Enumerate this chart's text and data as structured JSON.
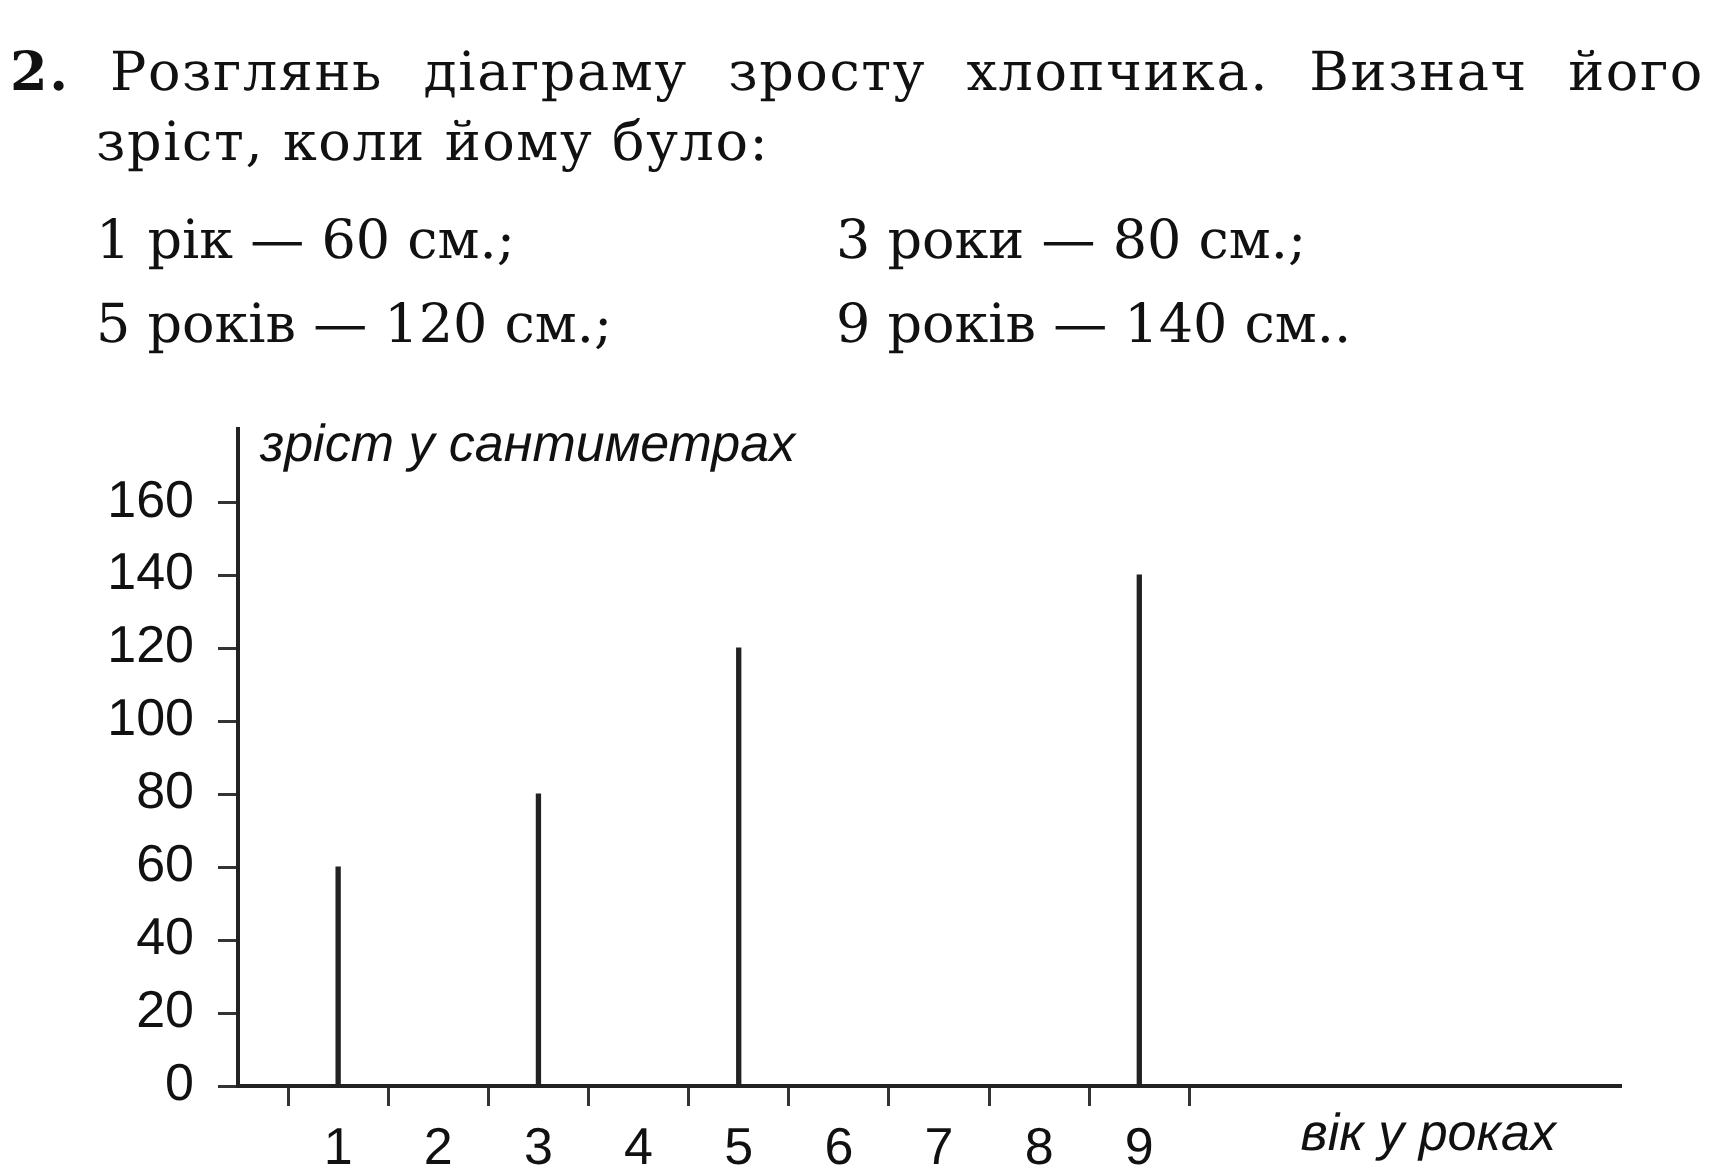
{
  "chart_data": {
    "type": "bar",
    "title": "2. Розглянь діаграму зросту хлопчика. Визнач його зріст, коли йому було:",
    "annotations": [
      "1 рік — 60 см.;",
      "3 роки — 80 см.;",
      "5 років — 120 см.;",
      "9 років — 140 см.."
    ],
    "xlabel": "вік у роках",
    "ylabel": "зріст у сантиметрах",
    "x": [
      1,
      3,
      5,
      9
    ],
    "values": [
      60,
      80,
      120,
      140
    ],
    "color": "#222222",
    "xlim": [
      0,
      13.8
    ],
    "xticks": [
      1,
      2,
      3,
      4,
      5,
      6,
      7,
      8,
      9
    ],
    "ylim": [
      0,
      180
    ],
    "yticks": [
      0,
      20,
      40,
      60,
      80,
      100,
      120,
      140,
      160
    ]
  }
}
